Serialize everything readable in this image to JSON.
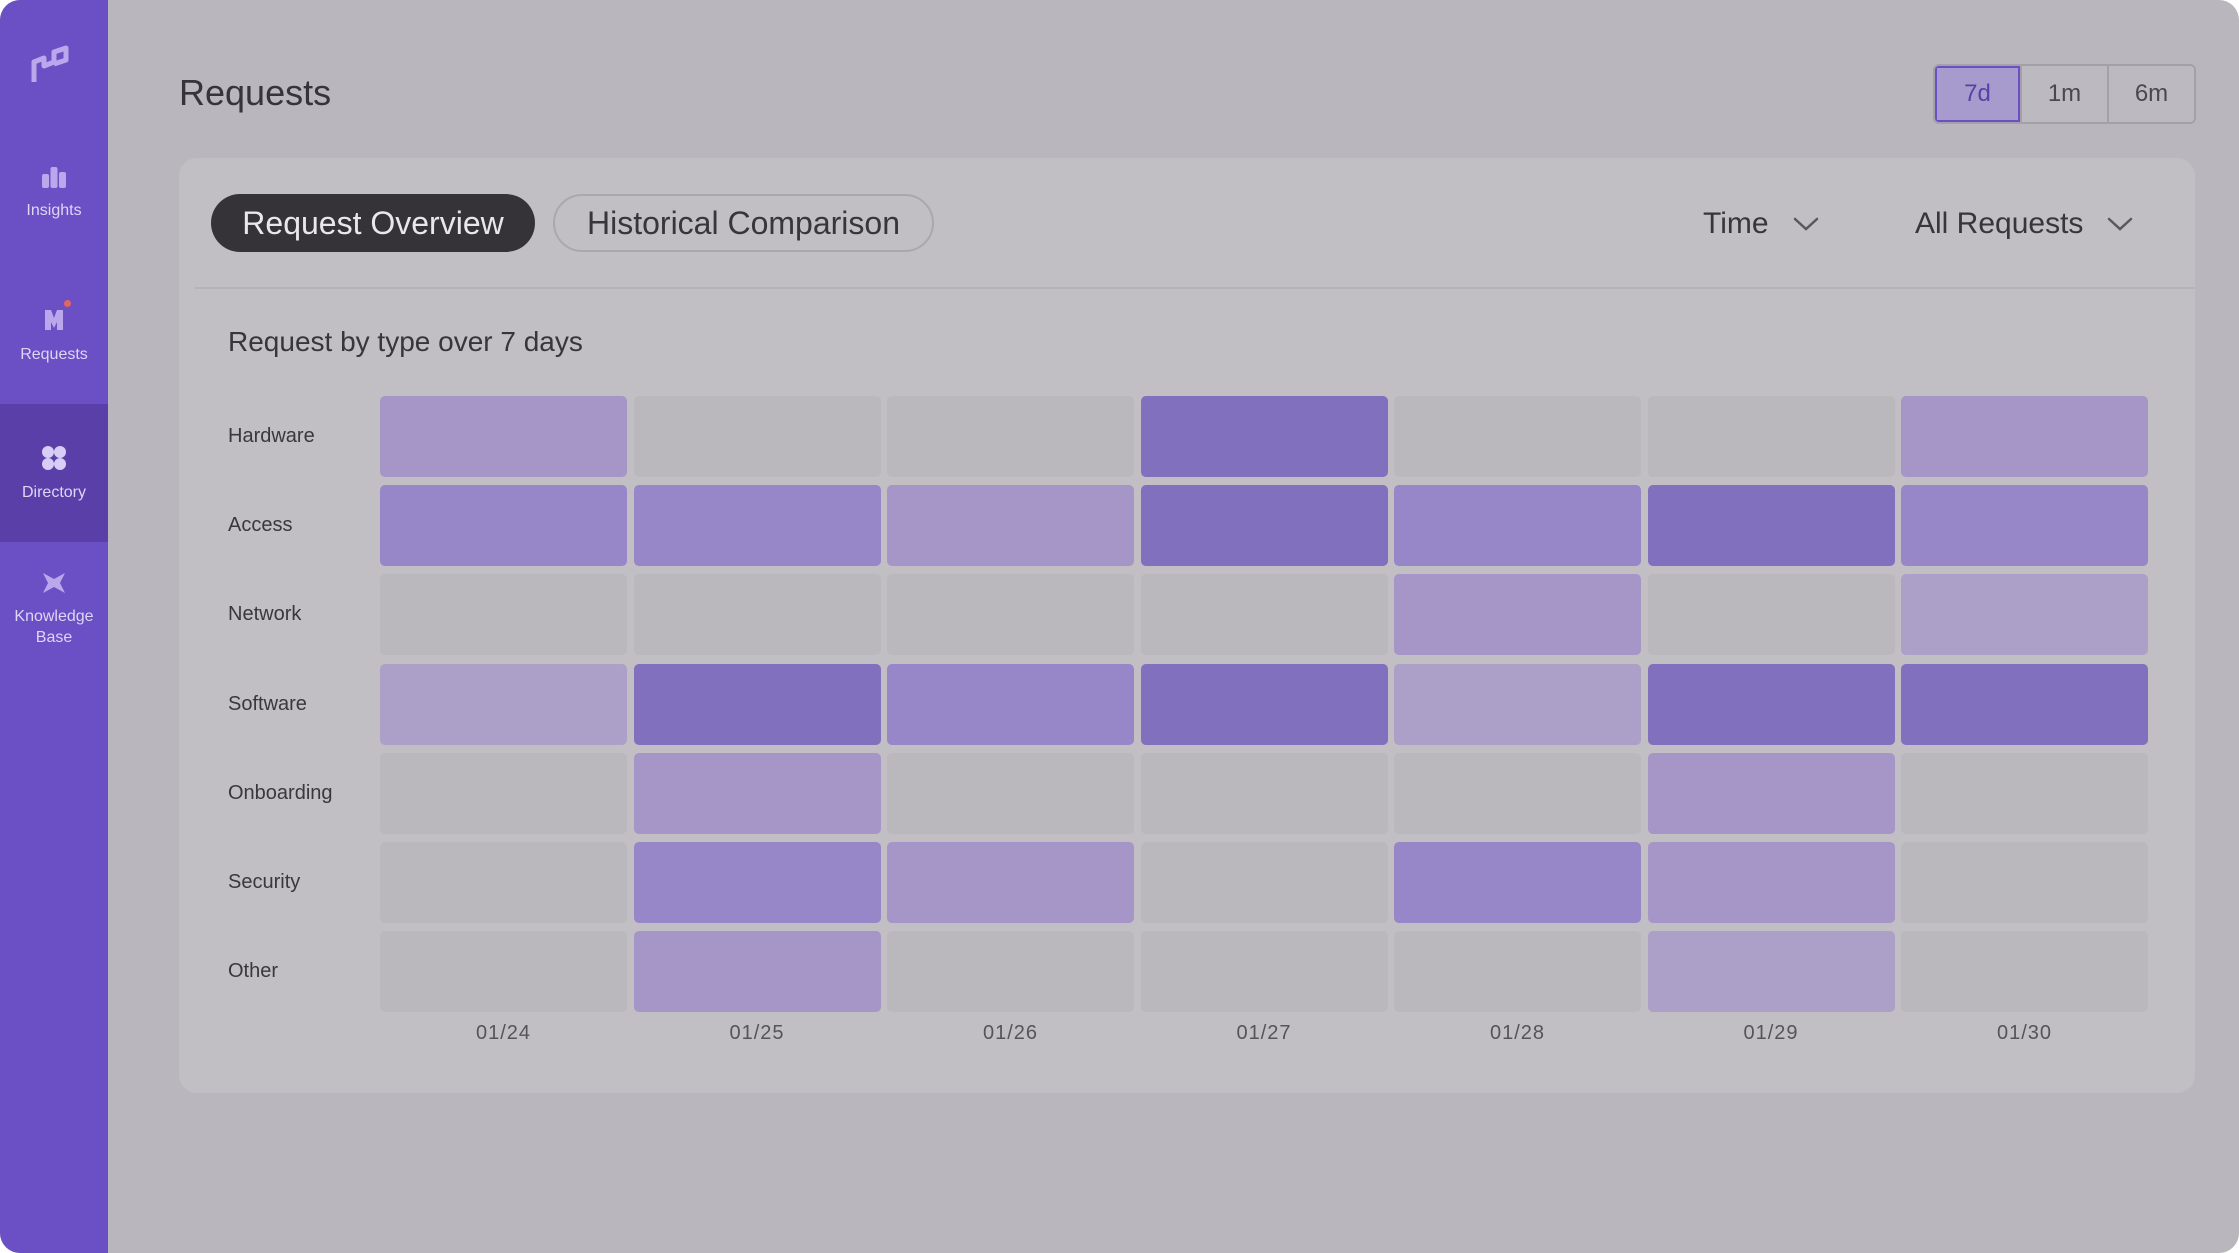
{
  "sidebar": {
    "items": [
      {
        "label": "Insights",
        "icon": "bar-chart-icon"
      },
      {
        "label": "Requests",
        "icon": "requests-icon"
      },
      {
        "label": "Directory",
        "icon": "directory-icon",
        "active": true
      },
      {
        "label": "Knowledge Base",
        "icon": "knowledge-base-icon"
      }
    ]
  },
  "header": {
    "title": "Requests",
    "ranges": [
      "7d",
      "1m",
      "6m"
    ],
    "active_range": "7d"
  },
  "tabs": {
    "overview": "Request Overview",
    "historical": "Historical Comparison"
  },
  "filters": {
    "time": "Time",
    "requests": "All Requests"
  },
  "colors": {
    "accent": "#6b4fc4",
    "empty_cell": "#bab8bc",
    "levels": [
      "#bab8bc",
      "#ac9fc8",
      "#a596c7",
      "#9786c8",
      "#8170bd"
    ]
  },
  "chart_data": {
    "type": "heatmap",
    "title": "Request by type over 7 days",
    "rows": [
      "Hardware",
      "Access",
      "Network",
      "Software",
      "Onboarding",
      "Security",
      "Other"
    ],
    "columns": [
      "01/24",
      "01/25",
      "01/26",
      "01/27",
      "01/28",
      "01/29",
      "01/30"
    ],
    "values": [
      [
        2,
        0,
        0,
        4,
        0,
        0,
        2
      ],
      [
        3,
        3,
        2,
        4,
        3,
        4,
        3
      ],
      [
        0,
        0,
        0,
        0,
        2,
        0,
        1
      ],
      [
        1,
        4,
        3,
        4,
        1,
        4,
        4
      ],
      [
        0,
        2,
        0,
        0,
        0,
        2,
        0
      ],
      [
        0,
        3,
        2,
        0,
        3,
        2,
        0
      ],
      [
        0,
        2,
        0,
        0,
        0,
        1,
        0
      ]
    ]
  }
}
